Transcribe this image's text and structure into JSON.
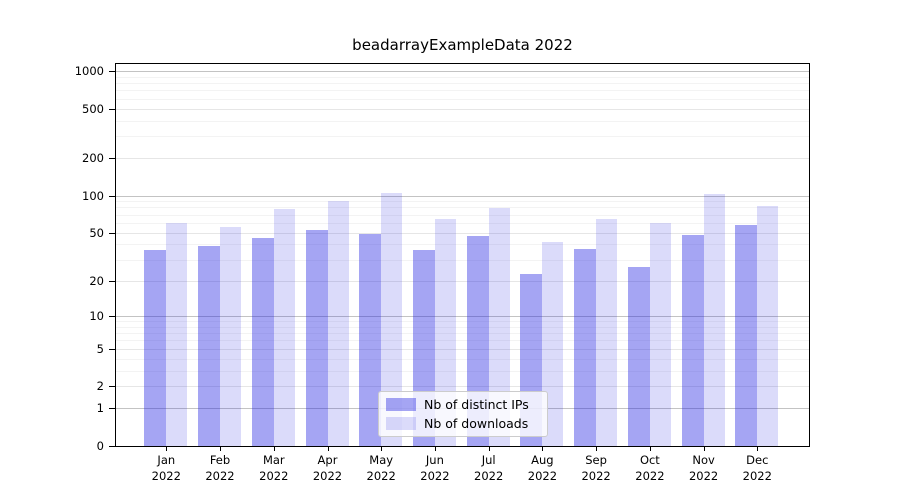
{
  "chart_data": {
    "type": "bar",
    "title": "beadarrayExampleData 2022",
    "y_scale": "log1p",
    "y_ticks": [
      0,
      1,
      2,
      5,
      10,
      20,
      50,
      100,
      200,
      500,
      1000
    ],
    "y_minor_gridlines": [
      3,
      4,
      6,
      7,
      8,
      9,
      30,
      40,
      60,
      70,
      80,
      90,
      300,
      400,
      600,
      700,
      800,
      900
    ],
    "ylim": [
      0,
      1200
    ],
    "grid": "on",
    "legend_position": "inside-bottom-center",
    "categories": [
      {
        "month": "Jan",
        "year": "2022"
      },
      {
        "month": "Feb",
        "year": "2022"
      },
      {
        "month": "Mar",
        "year": "2022"
      },
      {
        "month": "Apr",
        "year": "2022"
      },
      {
        "month": "May",
        "year": "2022"
      },
      {
        "month": "Jun",
        "year": "2022"
      },
      {
        "month": "Jul",
        "year": "2022"
      },
      {
        "month": "Aug",
        "year": "2022"
      },
      {
        "month": "Sep",
        "year": "2022"
      },
      {
        "month": "Oct",
        "year": "2022"
      },
      {
        "month": "Nov",
        "year": "2022"
      },
      {
        "month": "Dec",
        "year": "2022"
      }
    ],
    "series": [
      {
        "name": "Nb of distinct IPs",
        "values": [
          36,
          39,
          45,
          53,
          49,
          36,
          47,
          23,
          37,
          26,
          48,
          58
        ]
      },
      {
        "name": "Nb of downloads",
        "values": [
          60,
          56,
          78,
          90,
          105,
          64,
          79,
          42,
          65,
          60,
          102,
          83
        ]
      }
    ]
  },
  "colors": {
    "bar_distinct_ips": "rgba(30,30,225,0.40)",
    "bar_downloads": "rgba(30,30,225,0.16)",
    "gridline_minor": "#f3f3f3",
    "gridline_major": "#e6e6e6",
    "gridline_power10": "#c3c3c3",
    "axis_frame": "#000000",
    "legend_border": "#cccccc",
    "background": "#ffffff"
  }
}
